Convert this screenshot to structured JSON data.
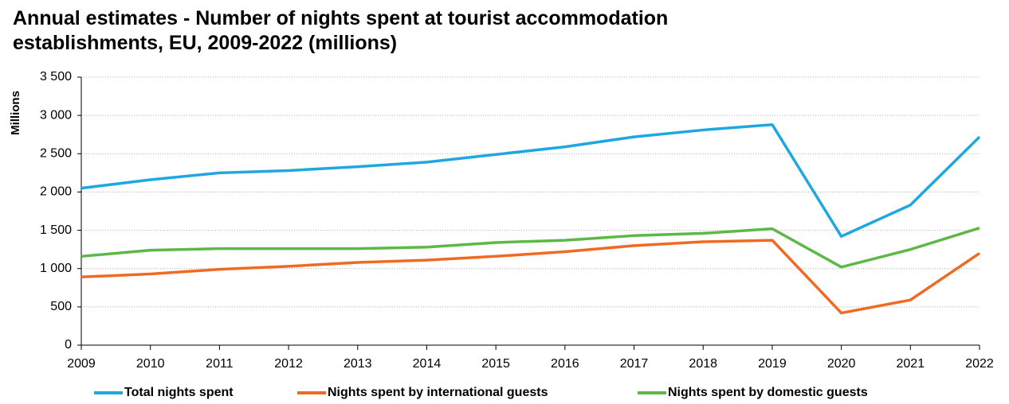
{
  "chart_data": {
    "type": "line",
    "title": "Annual estimates - Number of nights spent at tourist accommodation establishments, EU, 2009-2022 (millions)",
    "y_label": "Millions",
    "x": [
      2009,
      2010,
      2011,
      2012,
      2013,
      2014,
      2015,
      2016,
      2017,
      2018,
      2019,
      2020,
      2021,
      2022
    ],
    "xlim": [
      2009,
      2022
    ],
    "xticks": [
      2009,
      2010,
      2011,
      2012,
      2013,
      2014,
      2015,
      2016,
      2017,
      2018,
      2019,
      2020,
      2021,
      2022
    ],
    "ylim": [
      0,
      3500
    ],
    "yticks": [
      0,
      500,
      {
        "value": 1000,
        "label": "1 000"
      },
      {
        "value": 1500,
        "label": "1 500"
      },
      {
        "value": 2000,
        "label": "2 000"
      },
      {
        "value": 2500,
        "label": "2 500"
      },
      {
        "value": 3000,
        "label": "3 000"
      },
      {
        "value": 3500,
        "label": "3 500"
      }
    ],
    "grid": true,
    "legend": "bottom",
    "series": [
      {
        "name": "Total nights spent",
        "color": "#1fa7e1",
        "values": [
          2050,
          2160,
          2250,
          2280,
          2330,
          2390,
          2490,
          2590,
          2720,
          2810,
          2880,
          1420,
          1830,
          2720
        ]
      },
      {
        "name": "Nights spent by international guests",
        "color": "#f06a24",
        "values": [
          890,
          930,
          990,
          1030,
          1080,
          1110,
          1160,
          1220,
          1300,
          1350,
          1370,
          420,
          590,
          1200
        ]
      },
      {
        "name": "Nights spent by domestic guests",
        "color": "#5db847",
        "values": [
          1160,
          1240,
          1260,
          1260,
          1260,
          1280,
          1340,
          1370,
          1430,
          1460,
          1520,
          1020,
          1250,
          1530
        ]
      }
    ]
  }
}
